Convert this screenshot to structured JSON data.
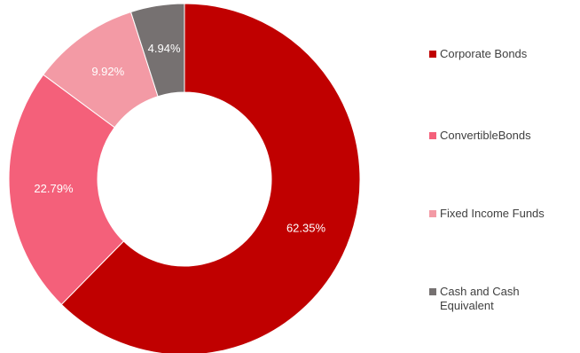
{
  "chart_data": {
    "type": "pie",
    "variant": "donut",
    "title": "",
    "slices": [
      {
        "name": "Corporate Bonds",
        "value": 62.35,
        "label": "62.35%",
        "color": "#C00000"
      },
      {
        "name": "ConvertibleBonds",
        "value": 22.79,
        "label": "22.79%",
        "color": "#F4607A"
      },
      {
        "name": "Fixed Income Funds",
        "value": 9.92,
        "label": "9.92%",
        "color": "#F39AA5"
      },
      {
        "name": "Cash and Cash Equivalent",
        "value": 4.94,
        "label": "4.94%",
        "color": "#767171"
      }
    ],
    "legend_position": "right",
    "start_angle": "top",
    "direction": "clockwise"
  }
}
